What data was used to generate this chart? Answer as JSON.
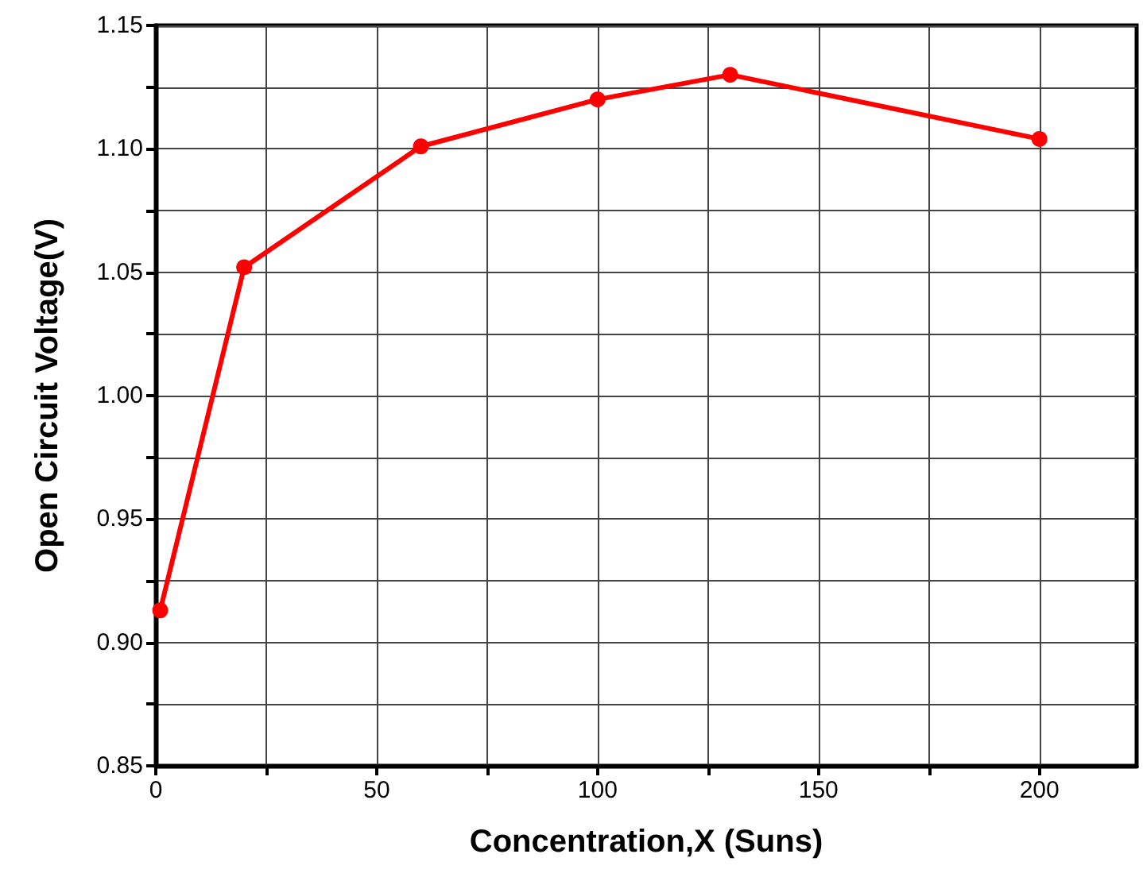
{
  "chart_data": {
    "type": "line",
    "xlabel": "Concentration,X (Suns)",
    "ylabel": "Open Circuit Voltage(V)",
    "x": [
      1,
      20,
      60,
      100,
      130,
      200
    ],
    "series": [
      {
        "color": "#ff0000",
        "values": [
          0.913,
          1.052,
          1.101,
          1.12,
          1.13,
          1.104
        ]
      }
    ],
    "xlim": [
      0,
      222
    ],
    "xticks": [
      0,
      {
        "value": 25,
        "label": null
      },
      50,
      {
        "value": 75,
        "label": null
      },
      100,
      {
        "value": 125,
        "label": null
      },
      150,
      {
        "value": 175,
        "label": null
      },
      200
    ],
    "ylim": [
      0.85,
      1.15
    ],
    "yticks": [
      0.85,
      {
        "value": 0.875,
        "label": null
      },
      {
        "value": 0.9,
        "label": "0.90"
      },
      {
        "value": 0.925,
        "label": null
      },
      0.95,
      {
        "value": 0.975,
        "label": null
      },
      {
        "value": 1.0,
        "label": "1.00"
      },
      {
        "value": 1.025,
        "label": null
      },
      1.05,
      {
        "value": 1.075,
        "label": null
      },
      {
        "value": 1.1,
        "label": "1.10"
      },
      {
        "value": 1.125,
        "label": null
      },
      1.15
    ],
    "grid": true,
    "marker": "circle",
    "line_style": "solid"
  }
}
